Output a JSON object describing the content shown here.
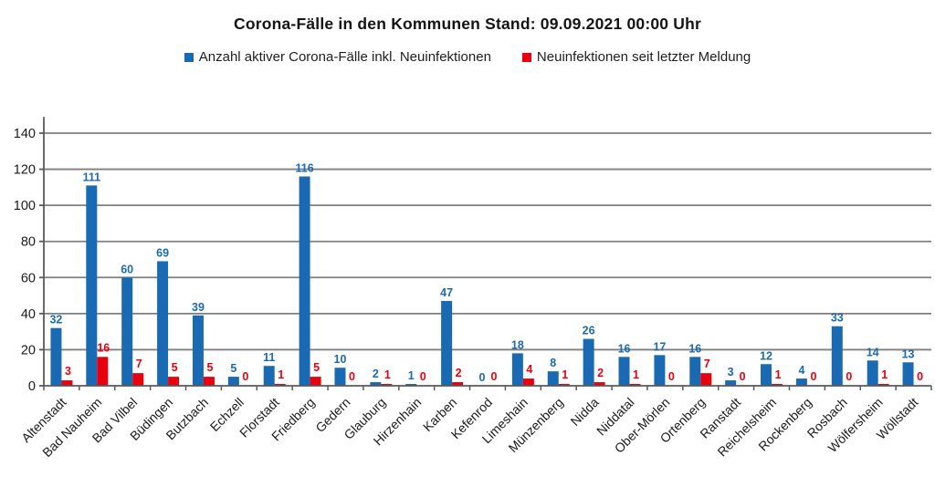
{
  "title": "Corona-Fälle in den Kommunen Stand: 09.09.2021 00:00 Uhr",
  "legend": [
    {
      "label": "Anzahl aktiver Corona-Fälle inkl. Neuinfektionen",
      "color": "#1A6AB3"
    },
    {
      "label": "Neuinfektionen seit letzter Meldung",
      "color": "#E8000E"
    }
  ],
  "colors": {
    "grid": "#7F7F7F",
    "axis": "#595959",
    "text": "#1A1A1A",
    "background": "#FFFFFF",
    "blue_series": "#1A6AB3",
    "red_series": "#E8000E"
  },
  "chart_data": {
    "type": "bar",
    "title": "Corona-Fälle in den Kommunen Stand: 09.09.2021 00:00 Uhr",
    "categories": [
      "Altenstadt",
      "Bad Nauheim",
      "Bad Vilbel",
      "Büdingen",
      "Butzbach",
      "Echzell",
      "Florstadt",
      "Friedberg",
      "Gedern",
      "Glauburg",
      "Hirzenhain",
      "Karben",
      "Kefenrod",
      "Limeshain",
      "Münzenberg",
      "Nidda",
      "Niddatal",
      "Ober-Mörlen",
      "Ortenberg",
      "Ranstadt",
      "Reichelsheim",
      "Rockenberg",
      "Rosbach",
      "Wölfersheim",
      "Wöllstadt"
    ],
    "series": [
      {
        "name": "Anzahl aktiver Corona-Fälle inkl. Neuinfektionen",
        "color": "#1A6AB3",
        "values": [
          32,
          111,
          60,
          69,
          39,
          5,
          11,
          116,
          10,
          2,
          1,
          47,
          0,
          18,
          8,
          26,
          16,
          17,
          16,
          3,
          12,
          4,
          33,
          14,
          13
        ]
      },
      {
        "name": "Neuinfektionen seit letzter Meldung",
        "color": "#E8000E",
        "values": [
          3,
          16,
          7,
          5,
          5,
          0,
          1,
          5,
          0,
          1,
          0,
          2,
          0,
          4,
          1,
          2,
          1,
          0,
          7,
          0,
          1,
          0,
          0,
          1,
          0
        ]
      }
    ],
    "xlabel": "",
    "ylabel": "",
    "ylim": [
      0,
      149
    ],
    "yticks": [
      0,
      20,
      40,
      60,
      80,
      100,
      120,
      140
    ],
    "grid": true,
    "legend_position": "top",
    "value_labels": true,
    "xtick_rotation": 45
  }
}
